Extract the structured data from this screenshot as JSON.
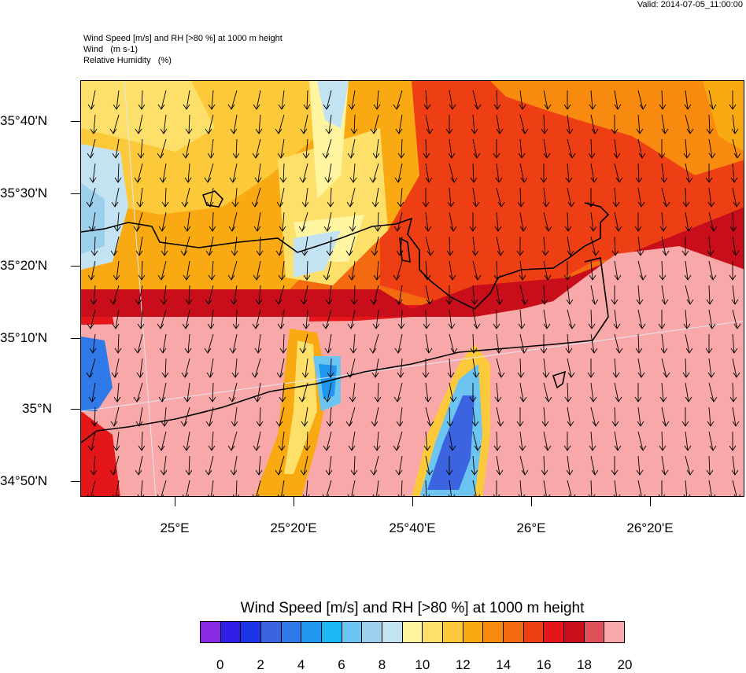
{
  "valid_label": "Valid: 2014-07-05_11:00:00",
  "titles": {
    "line1": "Wind Speed [m/s] and RH [>80 %] at 1000 m height",
    "line2": "Wind   (m s-1)",
    "line3": "Relative Humidity   (%)"
  },
  "lat_labels": [
    "35°40'N",
    "35°30'N",
    "35°20'N",
    "35°10'N",
    "35°N",
    "34°50'N"
  ],
  "lon_labels": [
    "25°E",
    "25°20'E",
    "25°40'E",
    "26°E",
    "26°20'E"
  ],
  "colorbar": {
    "title": "Wind Speed [m/s] and RH [>80 %] at 1000 m height",
    "colors": [
      "#8b2be2",
      "#2f1de8",
      "#1d35e6",
      "#3d64e0",
      "#2f7ae8",
      "#1f96f0",
      "#1cb6f5",
      "#6cc4f0",
      "#9ccfec",
      "#c4e3f2",
      "#fff5a0",
      "#fde06a",
      "#fcc93a",
      "#f9aa12",
      "#f88a10",
      "#f46a10",
      "#ee3e14",
      "#e4161a",
      "#c80e1a",
      "#e05058",
      "#f8a8a8"
    ],
    "labels": [
      "0",
      "2",
      "4",
      "6",
      "8",
      "10",
      "12",
      "14",
      "16",
      "18",
      "20"
    ]
  }
}
